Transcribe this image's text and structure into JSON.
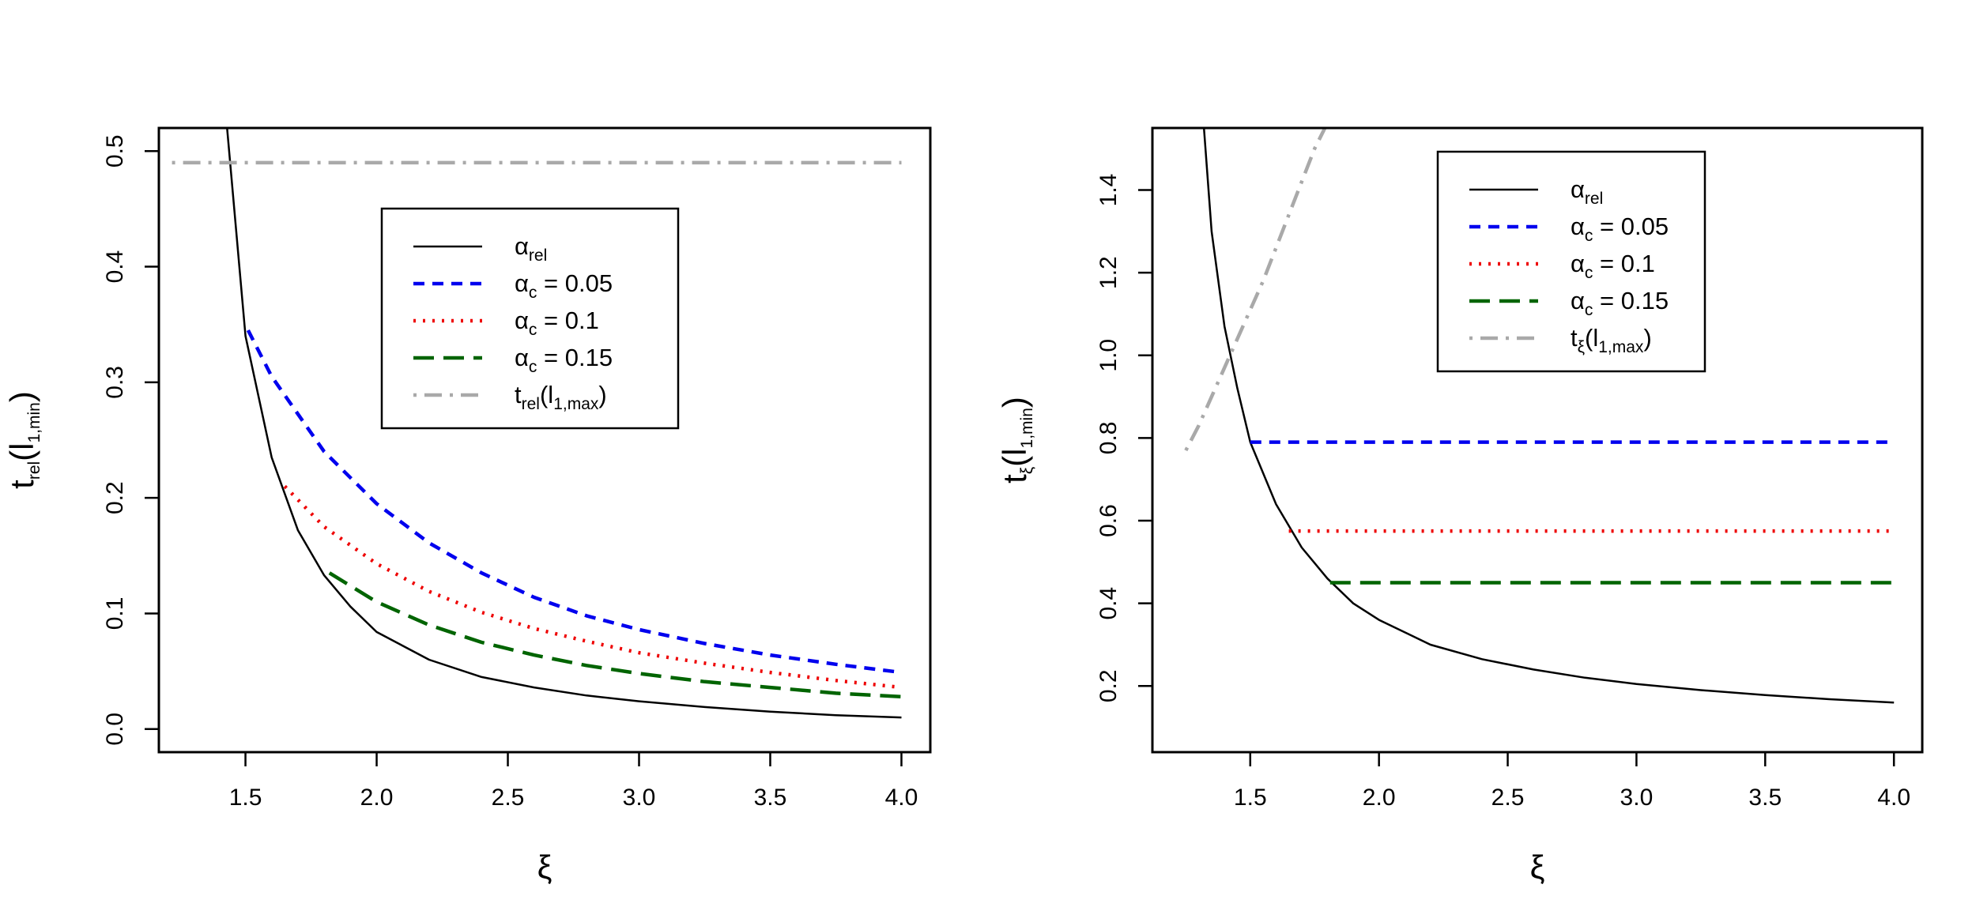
{
  "chart_data": [
    {
      "type": "line",
      "panel": "left",
      "xlabel": "ξ",
      "ylabel": {
        "base": "t",
        "sub": "rel",
        "paren_base": "l",
        "paren_sub": "1,min"
      },
      "xlim": [
        1.17,
        4.11
      ],
      "ylim": [
        -0.02,
        0.52
      ],
      "xticks": [
        {
          "v": 1.5,
          "label": "1.5"
        },
        {
          "v": 2.0,
          "label": "2.0"
        },
        {
          "v": 2.5,
          "label": "2.5"
        },
        {
          "v": 3.0,
          "label": "3.0"
        },
        {
          "v": 3.5,
          "label": "3.5"
        },
        {
          "v": 4.0,
          "label": "4.0"
        }
      ],
      "yticks": [
        {
          "v": 0.0,
          "label": "0.0"
        },
        {
          "v": 0.1,
          "label": "0.1"
        },
        {
          "v": 0.2,
          "label": "0.2"
        },
        {
          "v": 0.3,
          "label": "0.3"
        },
        {
          "v": 0.4,
          "label": "0.4"
        },
        {
          "v": 0.5,
          "label": "0.5"
        }
      ],
      "legend": {
        "position": "top-center",
        "entries": [
          {
            "greek": "α",
            "sub": "rel",
            "suffix": "",
            "series": "alpha_rel"
          },
          {
            "greek": "α",
            "sub": "c",
            "suffix": " = 0.05",
            "series": "alpha_c_005"
          },
          {
            "greek": "α",
            "sub": "c",
            "suffix": " = 0.1",
            "series": "alpha_c_01"
          },
          {
            "greek": "α",
            "sub": "c",
            "suffix": " = 0.15",
            "series": "alpha_c_015"
          },
          {
            "greek": "t",
            "sub": "rel",
            "paren_base": "l",
            "paren_sub": "1,max",
            "series": "t_max"
          }
        ]
      },
      "series": [
        {
          "id": "alpha_rel",
          "name": "α_rel",
          "color": "#000000",
          "style": "solid",
          "x": [
            1.43,
            1.5,
            1.6,
            1.7,
            1.8,
            1.9,
            2.0,
            2.2,
            2.4,
            2.6,
            2.8,
            3.0,
            3.25,
            3.5,
            3.75,
            4.0
          ],
          "y": [
            0.52,
            0.34,
            0.235,
            0.172,
            0.133,
            0.106,
            0.084,
            0.06,
            0.045,
            0.036,
            0.029,
            0.024,
            0.019,
            0.015,
            0.012,
            0.01
          ]
        },
        {
          "id": "alpha_c_005",
          "name": "α_c = 0.05",
          "color": "#0000ee",
          "style": "dashed",
          "x": [
            1.51,
            1.6,
            1.8,
            2.0,
            2.2,
            2.4,
            2.6,
            2.8,
            3.0,
            3.25,
            3.5,
            3.75,
            4.0
          ],
          "y": [
            0.345,
            0.305,
            0.24,
            0.195,
            0.161,
            0.135,
            0.114,
            0.098,
            0.086,
            0.074,
            0.064,
            0.056,
            0.049
          ]
        },
        {
          "id": "alpha_c_01",
          "name": "α_c = 0.1",
          "color": "#ee0000",
          "style": "dotted",
          "x": [
            1.65,
            1.8,
            2.0,
            2.2,
            2.4,
            2.6,
            2.8,
            3.0,
            3.25,
            3.5,
            3.75,
            4.0
          ],
          "y": [
            0.21,
            0.175,
            0.143,
            0.119,
            0.101,
            0.087,
            0.076,
            0.066,
            0.057,
            0.049,
            0.042,
            0.036
          ]
        },
        {
          "id": "alpha_c_015",
          "name": "α_c = 0.15",
          "color": "#006400",
          "style": "longdash",
          "x": [
            1.82,
            2.0,
            2.2,
            2.4,
            2.6,
            2.8,
            3.0,
            3.25,
            3.5,
            3.75,
            4.0
          ],
          "y": [
            0.135,
            0.11,
            0.09,
            0.075,
            0.064,
            0.055,
            0.048,
            0.041,
            0.036,
            0.031,
            0.028
          ]
        },
        {
          "id": "t_max",
          "name": "t_rel(l_1,max)",
          "color": "#a9a9a9",
          "style": "dotdash",
          "x": [
            1.22,
            4.0
          ],
          "y": [
            0.49,
            0.49
          ]
        }
      ]
    },
    {
      "type": "line",
      "panel": "right",
      "xlabel": "ξ",
      "ylabel": {
        "base": "t",
        "sub": "ξ",
        "paren_base": "l",
        "paren_sub": "1,min"
      },
      "xlim": [
        1.12,
        4.11
      ],
      "ylim": [
        0.04,
        1.55
      ],
      "xticks": [
        {
          "v": 1.5,
          "label": "1.5"
        },
        {
          "v": 2.0,
          "label": "2.0"
        },
        {
          "v": 2.5,
          "label": "2.5"
        },
        {
          "v": 3.0,
          "label": "3.0"
        },
        {
          "v": 3.5,
          "label": "3.5"
        },
        {
          "v": 4.0,
          "label": "4.0"
        }
      ],
      "yticks": [
        {
          "v": 0.2,
          "label": "0.2"
        },
        {
          "v": 0.4,
          "label": "0.4"
        },
        {
          "v": 0.6,
          "label": "0.6"
        },
        {
          "v": 0.8,
          "label": "0.8"
        },
        {
          "v": 1.0,
          "label": "1.0"
        },
        {
          "v": 1.2,
          "label": "1.2"
        },
        {
          "v": 1.4,
          "label": "1.4"
        }
      ],
      "legend": {
        "position": "top-center",
        "entries": [
          {
            "greek": "α",
            "sub": "rel",
            "suffix": "",
            "series": "alpha_rel"
          },
          {
            "greek": "α",
            "sub": "c",
            "suffix": " = 0.05",
            "series": "alpha_c_005"
          },
          {
            "greek": "α",
            "sub": "c",
            "suffix": " = 0.1",
            "series": "alpha_c_01"
          },
          {
            "greek": "α",
            "sub": "c",
            "suffix": " = 0.15",
            "series": "alpha_c_015"
          },
          {
            "greek": "t",
            "sub": "ξ",
            "paren_base": "l",
            "paren_sub": "1,max",
            "series": "t_max"
          }
        ]
      },
      "series": [
        {
          "id": "alpha_rel",
          "name": "α_rel",
          "color": "#000000",
          "style": "solid",
          "x": [
            1.32,
            1.35,
            1.4,
            1.45,
            1.5,
            1.6,
            1.7,
            1.8,
            1.9,
            2.0,
            2.2,
            2.4,
            2.6,
            2.8,
            3.0,
            3.25,
            3.5,
            3.75,
            4.0
          ],
          "y": [
            1.55,
            1.3,
            1.07,
            0.92,
            0.79,
            0.64,
            0.535,
            0.46,
            0.4,
            0.36,
            0.3,
            0.265,
            0.24,
            0.22,
            0.205,
            0.19,
            0.178,
            0.168,
            0.16
          ]
        },
        {
          "id": "alpha_c_005",
          "name": "α_c = 0.05",
          "color": "#0000ee",
          "style": "dashed",
          "x": [
            1.5,
            4.0
          ],
          "y": [
            0.79,
            0.79
          ]
        },
        {
          "id": "alpha_c_01",
          "name": "α_c = 0.1",
          "color": "#ee0000",
          "style": "dotted",
          "x": [
            1.65,
            4.0
          ],
          "y": [
            0.575,
            0.575
          ]
        },
        {
          "id": "alpha_c_015",
          "name": "α_c = 0.15",
          "color": "#006400",
          "style": "longdash",
          "x": [
            1.81,
            4.0
          ],
          "y": [
            0.45,
            0.45
          ]
        },
        {
          "id": "t_max",
          "name": "t_ξ(l_1,max)",
          "color": "#a9a9a9",
          "style": "dotdash",
          "x": [
            1.25,
            1.3,
            1.35,
            1.4,
            1.45,
            1.5,
            1.55,
            1.6,
            1.65,
            1.7,
            1.75,
            1.79
          ],
          "y": [
            0.77,
            0.83,
            0.9,
            0.97,
            1.04,
            1.11,
            1.18,
            1.26,
            1.34,
            1.42,
            1.5,
            1.55
          ]
        }
      ]
    }
  ]
}
